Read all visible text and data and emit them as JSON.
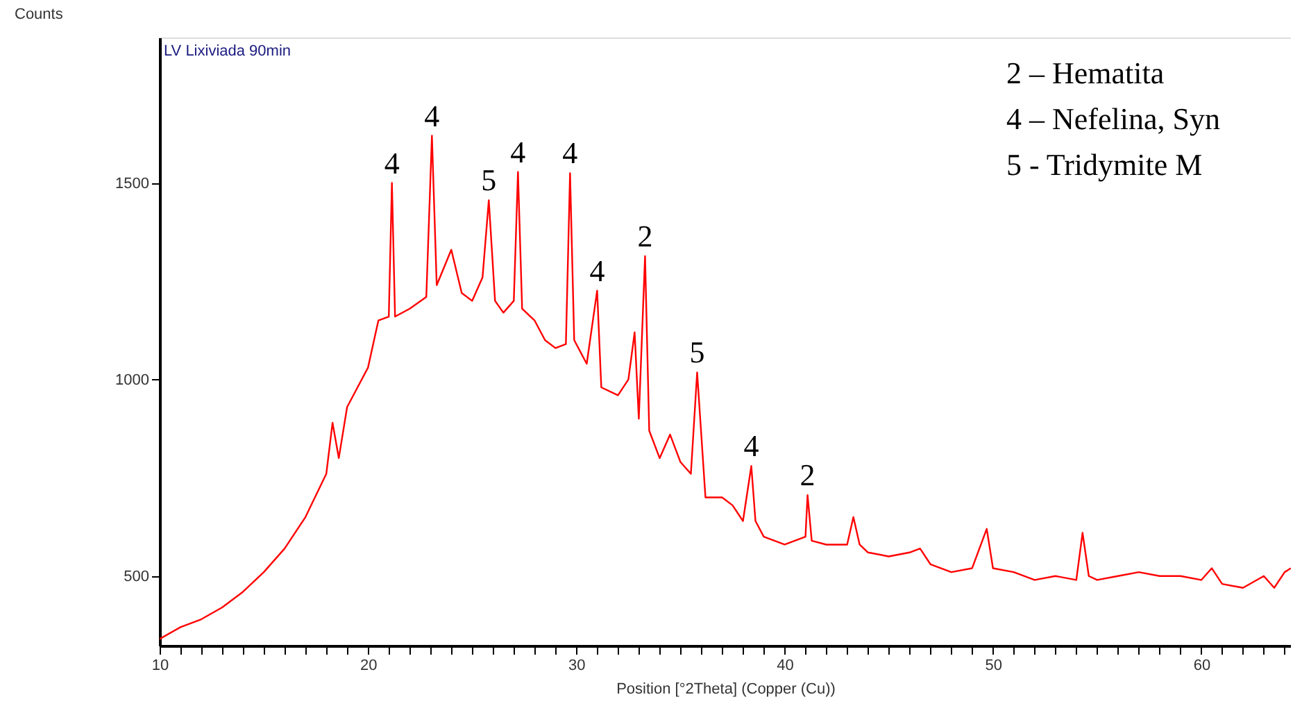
{
  "chart_data": {
    "type": "line",
    "title": "LV Lixiviada 90min",
    "xlabel": "Position [°2Theta] (Copper (Cu))",
    "ylabel": "Counts",
    "xlim": [
      10,
      64.3
    ],
    "ylim": [
      323,
      1870
    ],
    "xticks": [
      10,
      {
        "value": 11,
        "label": null
      },
      {
        "value": 12,
        "label": null
      },
      {
        "value": 13,
        "label": null
      },
      {
        "value": 14,
        "label": null
      },
      {
        "value": 15,
        "label": null
      },
      {
        "value": 16,
        "label": null
      },
      {
        "value": 17,
        "label": null
      },
      {
        "value": 18,
        "label": null
      },
      {
        "value": 19,
        "label": null
      },
      20,
      {
        "value": 21,
        "label": null
      },
      {
        "value": 22,
        "label": null
      },
      {
        "value": 23,
        "label": null
      },
      {
        "value": 24,
        "label": null
      },
      {
        "value": 25,
        "label": null
      },
      {
        "value": 26,
        "label": null
      },
      {
        "value": 27,
        "label": null
      },
      {
        "value": 28,
        "label": null
      },
      {
        "value": 29,
        "label": null
      },
      30,
      {
        "value": 31,
        "label": null
      },
      {
        "value": 32,
        "label": null
      },
      {
        "value": 33,
        "label": null
      },
      {
        "value": 34,
        "label": null
      },
      {
        "value": 35,
        "label": null
      },
      {
        "value": 36,
        "label": null
      },
      {
        "value": 37,
        "label": null
      },
      {
        "value": 38,
        "label": null
      },
      {
        "value": 39,
        "label": null
      },
      40,
      {
        "value": 41,
        "label": null
      },
      {
        "value": 42,
        "label": null
      },
      {
        "value": 43,
        "label": null
      },
      {
        "value": 44,
        "label": null
      },
      {
        "value": 45,
        "label": null
      },
      {
        "value": 46,
        "label": null
      },
      {
        "value": 47,
        "label": null
      },
      {
        "value": 48,
        "label": null
      },
      {
        "value": 49,
        "label": null
      },
      50,
      {
        "value": 51,
        "label": null
      },
      {
        "value": 52,
        "label": null
      },
      {
        "value": 53,
        "label": null
      },
      {
        "value": 54,
        "label": null
      },
      {
        "value": 55,
        "label": null
      },
      {
        "value": 56,
        "label": null
      },
      {
        "value": 57,
        "label": null
      },
      {
        "value": 58,
        "label": null
      },
      {
        "value": 59,
        "label": null
      },
      60,
      {
        "value": 61,
        "label": null
      },
      {
        "value": 62,
        "label": null
      },
      {
        "value": 63,
        "label": null
      },
      {
        "value": 64,
        "label": null
      }
    ],
    "yticks": [
      500,
      1000,
      1500
    ],
    "grid": false,
    "marker": "none",
    "line_style": "solid",
    "series": [
      {
        "color": "#ff0000",
        "x": [
          10,
          11,
          12,
          13,
          14,
          15,
          16,
          17,
          18,
          18.3,
          18.6,
          19,
          20,
          20.5,
          21,
          21.15,
          21.3,
          22,
          22.8,
          23.07,
          23.3,
          24,
          24.5,
          25,
          25.5,
          25.8,
          26.1,
          26.5,
          27,
          27.2,
          27.4,
          28,
          28.5,
          29,
          29.5,
          29.7,
          29.9,
          30.5,
          31,
          31.2,
          32,
          32.5,
          32.8,
          33,
          33.3,
          33.5,
          34,
          34.5,
          35,
          35.5,
          35.8,
          36.2,
          37,
          37.5,
          38,
          38.4,
          38.6,
          39,
          40,
          41,
          41.1,
          41.3,
          42,
          43,
          43.3,
          43.6,
          44,
          45,
          46,
          46.5,
          47,
          48,
          49,
          49.7,
          50,
          51,
          52,
          53,
          54,
          54.3,
          54.6,
          55,
          56,
          57,
          58,
          59,
          60,
          60.5,
          61,
          62,
          63,
          63.5,
          64,
          64.3
        ],
        "values": [
          340,
          370,
          390,
          420,
          460,
          510,
          570,
          650,
          760,
          890,
          800,
          930,
          1030,
          1150,
          1160,
          1500,
          1160,
          1180,
          1210,
          1620,
          1240,
          1330,
          1220,
          1200,
          1260,
          1456,
          1200,
          1170,
          1200,
          1528,
          1180,
          1150,
          1100,
          1080,
          1090,
          1525,
          1100,
          1040,
          1226,
          980,
          960,
          1000,
          1120,
          900,
          1314,
          870,
          800,
          860,
          790,
          760,
          1018,
          700,
          700,
          680,
          640,
          780,
          640,
          600,
          580,
          600,
          706,
          590,
          580,
          580,
          650,
          580,
          560,
          550,
          560,
          570,
          530,
          510,
          520,
          620,
          520,
          510,
          490,
          500,
          490,
          610,
          500,
          490,
          500,
          510,
          500,
          500,
          490,
          520,
          480,
          470,
          500,
          470,
          510,
          520
        ]
      }
    ],
    "annotations": [
      {
        "text": "4",
        "x": 21.15,
        "y": 1500
      },
      {
        "text": "4",
        "x": 23.07,
        "y": 1620
      },
      {
        "text": "5",
        "x": 25.8,
        "y": 1456
      },
      {
        "text": "4",
        "x": 27.2,
        "y": 1528
      },
      {
        "text": "4",
        "x": 29.7,
        "y": 1525
      },
      {
        "text": "4",
        "x": 31.0,
        "y": 1226
      },
      {
        "text": "2",
        "x": 33.3,
        "y": 1314
      },
      {
        "text": "5",
        "x": 35.8,
        "y": 1018
      },
      {
        "text": "4",
        "x": 38.4,
        "y": 780
      },
      {
        "text": "2",
        "x": 41.1,
        "y": 706
      },
      "2 – Hematita",
      "4 – Nefelina, Syn",
      "5 - Tridymite M"
    ]
  }
}
